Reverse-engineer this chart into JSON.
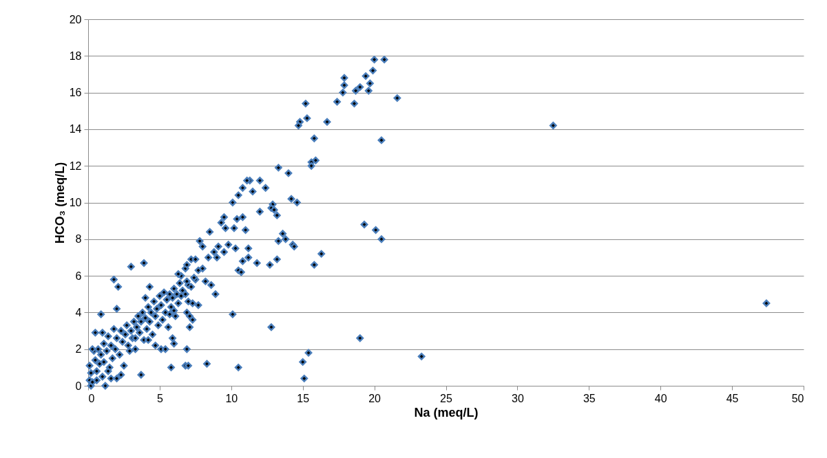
{
  "chart_data": {
    "type": "scatter",
    "xlabel": "Na (meq/L)",
    "ylabel": "HCO₃ (meq/L)",
    "xlim": [
      0,
      50
    ],
    "xticks": [
      0,
      5,
      10,
      15,
      20,
      25,
      30,
      35,
      40,
      45,
      50
    ],
    "ylim": [
      0,
      20
    ],
    "yticks": [
      0,
      2,
      4,
      6,
      8,
      10,
      12,
      14,
      16,
      18,
      20
    ],
    "grid": "y",
    "marker": "diamond",
    "series": [
      {
        "color": "#4a7ebb",
        "x": [
          20.0,
          20.7,
          19.9,
          17.9,
          19.4,
          17.9,
          19.0,
          18.7,
          19.6,
          17.8,
          19.7,
          17.4,
          18.6,
          21.6,
          15.2,
          15.3,
          14.8,
          14.7,
          16.7,
          32.5,
          15.8,
          20.5,
          15.9,
          15.6,
          15.6,
          13.3,
          14.0,
          11.3,
          12.0,
          11.1,
          10.8,
          12.4,
          11.5,
          10.5,
          14.2,
          14.6,
          10.1,
          12.9,
          12.8,
          13.0,
          12.0,
          13.2,
          9.5,
          10.4,
          9.3,
          10.8,
          19.3,
          20.1,
          20.5,
          8.5,
          9.6,
          10.2,
          11.0,
          13.6,
          13.8,
          13.3,
          7.8,
          8.0,
          9.1,
          9.8,
          10.3,
          11.2,
          14.3,
          14.4,
          8.8,
          9.5,
          8.4,
          9.0,
          11.2,
          16.3,
          10.5,
          10.7,
          11.8,
          12.7,
          13.2,
          15.8,
          10.8,
          3.9,
          3.0,
          6.8,
          7.2,
          7.5,
          6.9,
          7.7,
          6.5,
          6.3,
          7.5,
          8.2,
          8.0,
          1.8,
          2.1,
          4.3,
          7.0,
          8.6,
          8.9,
          7.7,
          7.3,
          6.9,
          7.1,
          7.3,
          7.1,
          10.1,
          12.8,
          19.0,
          23.3,
          47.4,
          15.4,
          15.0,
          15.1,
          10.5,
          8.3,
          6.8,
          7.0,
          5.8,
          6.9,
          5.9,
          6.0,
          3.7,
          2.0,
          0.9,
          0.5,
          0.1,
          0.2,
          0.3,
          0.1,
          0.2,
          0.4,
          0.5,
          0.6,
          0.7,
          0.8,
          0.9,
          1.0,
          1.1,
          1.1,
          1.2,
          1.3,
          1.4,
          1.5,
          1.6,
          1.7,
          1.8,
          1.9,
          2.0,
          2.0,
          2.2,
          2.3,
          2.4,
          2.5,
          2.6,
          2.7,
          2.8,
          3.0,
          3.1,
          3.2,
          3.3,
          3.4,
          3.5,
          3.6,
          3.7,
          3.8,
          3.9,
          4.0,
          4.1,
          4.2,
          4.3,
          4.4,
          4.5,
          4.6,
          4.7,
          4.8,
          4.9,
          5.0,
          5.1,
          5.1,
          5.2,
          5.3,
          5.4,
          5.5,
          5.6,
          5.7,
          5.8,
          5.9,
          6.0,
          6.1,
          6.2,
          6.3,
          6.4,
          6.5,
          6.6,
          6.8,
          6.9,
          7.0,
          7.2,
          7.4,
          2.3,
          1.6,
          0.3,
          4.7,
          3.3,
          2.9,
          1.4,
          0.6,
          1.0,
          5.4,
          4.2,
          4.0,
          6.0,
          5.7
        ],
        "values": [
          17.8,
          17.8,
          17.2,
          16.8,
          16.9,
          16.4,
          16.3,
          16.1,
          16.1,
          16.0,
          16.5,
          15.5,
          15.4,
          15.7,
          15.4,
          14.6,
          14.4,
          14.2,
          14.4,
          14.2,
          13.5,
          13.4,
          12.3,
          12.2,
          12.0,
          11.9,
          11.6,
          11.2,
          11.2,
          11.2,
          10.8,
          10.8,
          10.6,
          10.4,
          10.2,
          10.0,
          10.0,
          9.9,
          9.7,
          9.6,
          9.5,
          9.3,
          9.2,
          9.1,
          8.9,
          9.2,
          8.8,
          8.5,
          8.0,
          8.4,
          8.6,
          8.6,
          8.5,
          8.3,
          8.0,
          7.9,
          7.9,
          7.6,
          7.6,
          7.7,
          7.5,
          7.5,
          7.7,
          7.6,
          7.3,
          7.3,
          7.0,
          7.0,
          7.0,
          7.2,
          6.3,
          6.2,
          6.7,
          6.6,
          6.9,
          6.6,
          6.8,
          6.7,
          6.5,
          6.4,
          6.9,
          6.9,
          6.6,
          6.3,
          6.0,
          6.1,
          5.8,
          5.7,
          6.4,
          5.8,
          5.4,
          5.4,
          5.5,
          5.5,
          5.0,
          4.4,
          4.5,
          4.0,
          3.8,
          3.6,
          3.2,
          3.9,
          3.2,
          2.6,
          1.6,
          4.5,
          1.8,
          1.3,
          0.4,
          1.0,
          1.2,
          1.1,
          1.1,
          1.0,
          2.0,
          2.6,
          2.3,
          0.6,
          4.2,
          3.9,
          2.9,
          0.3,
          0.0,
          0.2,
          1.1,
          0.7,
          1.9,
          1.4,
          0.8,
          2.0,
          1.2,
          1.7,
          0.5,
          1.3,
          2.3,
          0.0,
          1.9,
          2.7,
          1.0,
          2.2,
          1.5,
          3.1,
          2.0,
          0.4,
          2.6,
          1.7,
          3.0,
          2.4,
          1.1,
          2.8,
          3.3,
          2.2,
          3.0,
          2.6,
          3.5,
          2.0,
          3.2,
          3.8,
          2.9,
          3.5,
          4.0,
          2.5,
          3.7,
          3.1,
          4.3,
          3.5,
          4.0,
          2.8,
          4.6,
          3.8,
          4.2,
          3.3,
          4.9,
          2.0,
          4.4,
          3.6,
          5.1,
          4.0,
          4.7,
          3.2,
          5.0,
          4.3,
          4.8,
          5.3,
          3.8,
          5.0,
          4.5,
          5.6,
          4.9,
          5.2,
          5.0,
          5.7,
          4.6,
          5.4,
          5.9,
          0.6,
          0.4,
          2.0,
          2.2,
          2.6,
          1.9,
          0.8,
          0.3,
          2.9,
          2.0,
          2.5,
          4.8,
          4.1,
          3.9
        ]
      }
    ]
  }
}
